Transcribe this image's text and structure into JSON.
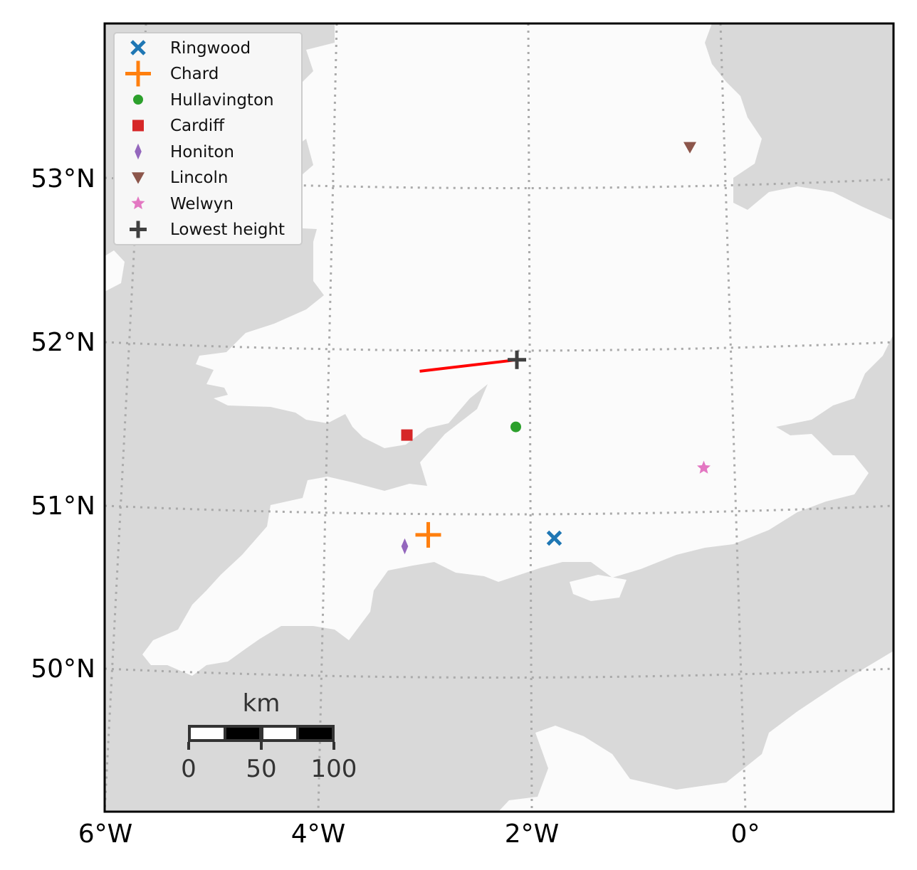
{
  "map": {
    "region": "Southern England and Wales",
    "lat_labels": [
      "53°N",
      "52°N",
      "51°N",
      "50°N"
    ],
    "lon_labels": [
      "6°W",
      "4°W",
      "2°W",
      "0°"
    ],
    "gridlines": "dotted",
    "land_color": "#fbfbfb",
    "sea_color": "#d9d9d9",
    "grid_color": "#aaaaaa"
  },
  "legend": {
    "placement": "top-left",
    "entries": [
      {
        "label": "Ringwood",
        "marker": "x",
        "color": "#1f77b4"
      },
      {
        "label": "Chard",
        "marker": "plus",
        "color": "#ff7f0e"
      },
      {
        "label": "Hullavington",
        "marker": "circle",
        "color": "#2ca02c"
      },
      {
        "label": "Cardiff",
        "marker": "square",
        "color": "#d62728"
      },
      {
        "label": "Honiton",
        "marker": "thin-diamond",
        "color": "#9467bd"
      },
      {
        "label": "Lincoln",
        "marker": "triangle-down",
        "color": "#8c564b"
      },
      {
        "label": "Welwyn",
        "marker": "star",
        "color": "#e377c2"
      },
      {
        "label": "Lowest height",
        "marker": "plus",
        "color": "#404040"
      }
    ]
  },
  "points": [
    {
      "name": "Ringwood",
      "lon": -1.79,
      "lat": 50.85
    },
    {
      "name": "Chard",
      "lon": -2.97,
      "lat": 50.87
    },
    {
      "name": "Hullavington",
      "lon": -2.15,
      "lat": 51.53
    },
    {
      "name": "Cardiff",
      "lon": -3.17,
      "lat": 51.48
    },
    {
      "name": "Honiton",
      "lon": -3.19,
      "lat": 50.8
    },
    {
      "name": "Lincoln",
      "lon": -0.52,
      "lat": 53.24
    },
    {
      "name": "Welwyn",
      "lon": -0.39,
      "lat": 51.28
    },
    {
      "name": "Lowest height",
      "lon": -2.14,
      "lat": 51.94
    }
  ],
  "track": {
    "color": "#ff0000",
    "from": {
      "lon": -3.05,
      "lat": 51.87
    },
    "to": {
      "lon": -2.14,
      "lat": 51.94
    }
  },
  "scale_bar": {
    "unit": "km",
    "labels": [
      "0",
      "50",
      "100"
    ]
  }
}
